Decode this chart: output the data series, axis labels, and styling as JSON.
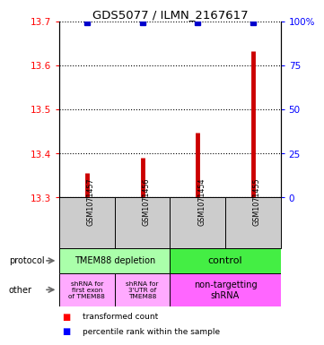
{
  "title": "GDS5077 / ILMN_2167617",
  "samples": [
    "GSM1071457",
    "GSM1071456",
    "GSM1071454",
    "GSM1071455"
  ],
  "red_values": [
    13.355,
    13.39,
    13.447,
    13.632
  ],
  "blue_values": [
    99.5,
    99.5,
    99.5,
    99.5
  ],
  "ylim_left": [
    13.3,
    13.7
  ],
  "ylim_right": [
    0,
    100
  ],
  "left_ticks": [
    13.3,
    13.4,
    13.5,
    13.6,
    13.7
  ],
  "right_ticks": [
    0,
    25,
    50,
    75,
    100
  ],
  "right_tick_labels": [
    "0",
    "25",
    "50",
    "75",
    "100%"
  ],
  "protocol_label_depletion": "TMEM88 depletion",
  "protocol_label_control": "control",
  "protocol_color_depletion": "#aaffaa",
  "protocol_color_control": "#44ee44",
  "other_label_1": "shRNA for\nfirst exon\nof TMEM88",
  "other_label_2": "shRNA for\n3'UTR of\nTMEM88",
  "other_label_3": "non-targetting\nshRNA",
  "other_color_12": "#ffaaff",
  "other_color_3": "#ff66ff",
  "legend_red": "transformed count",
  "legend_blue": "percentile rank within the sample",
  "bar_color": "#cc0000",
  "dot_color": "#0000cc",
  "sample_bg_color": "#cccccc",
  "white": "#ffffff"
}
